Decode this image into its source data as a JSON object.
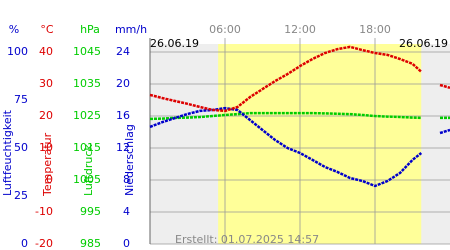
{
  "chart_data": {
    "type": "line",
    "date_left": "26.06.19",
    "date_right": "26.06.19",
    "footer": "Erstellt: 01.07.2025 14:57",
    "grid": true,
    "xlim": [
      0,
      24
    ],
    "xticks": [
      {
        "value": 6,
        "label": "06:00"
      },
      {
        "value": 12,
        "label": "12:00"
      },
      {
        "value": 18,
        "label": "18:00"
      }
    ],
    "daylight": [
      5.45,
      21.7
    ],
    "axes": [
      {
        "unit": "%",
        "label": "Luftfeuchtigkeit",
        "color": "#0000cc",
        "ylim": [
          0,
          100
        ],
        "yticks": [
          0,
          25,
          50,
          75,
          100
        ]
      },
      {
        "unit": "°C",
        "label": "Temperatur",
        "color": "#dd0000",
        "ylim": [
          -20,
          40
        ],
        "yticks": [
          -20,
          -10,
          0,
          10,
          20,
          30,
          40
        ]
      },
      {
        "unit": "hPa",
        "label": "Luftdruck",
        "color": "#00cc00",
        "ylim": [
          985,
          1045
        ],
        "yticks": [
          985,
          995,
          1005,
          1015,
          1025,
          1035,
          1045
        ]
      },
      {
        "unit": "mm/h",
        "label": "Niederschlag",
        "color": "#0000cc",
        "ylim": [
          0,
          24
        ],
        "yticks": [
          0,
          4,
          8,
          12,
          16,
          20,
          24
        ]
      }
    ],
    "x": [
      0,
      1,
      2,
      3,
      4,
      5,
      6,
      7,
      8,
      9,
      10,
      11,
      12,
      13,
      14,
      15,
      16,
      17,
      18,
      19,
      20,
      21,
      21.7,
      22.5,
      23.2,
      24
    ],
    "series": [
      {
        "axis": 2,
        "color": "#00cc00",
        "values": [
          1024.1,
          1024.2,
          1024.4,
          1024.5,
          1024.7,
          1025,
          1025.3,
          1025.6,
          1025.9,
          1025.9,
          1025.9,
          1025.9,
          1025.9,
          1025.9,
          1025.8,
          1025.7,
          1025.6,
          1025.3,
          1025,
          1024.8,
          1024.7,
          1024.5,
          1024.4,
          null,
          1024.4,
          1024.4
        ]
      },
      {
        "axis": 0,
        "color": "#0000cc",
        "values": [
          61,
          63.5,
          65.6,
          67.7,
          69.3,
          69.8,
          70.8,
          69.8,
          64.6,
          59.4,
          54.2,
          50,
          47.4,
          43.8,
          40.1,
          37.5,
          34.4,
          32.8,
          30.2,
          32.8,
          37,
          43.8,
          47.4,
          null,
          57.8,
          59.4
        ]
      },
      {
        "axis": 1,
        "color": "#dd0000",
        "values": [
          26.6,
          25.6,
          24.7,
          23.8,
          22.8,
          21.9,
          21.6,
          22.8,
          25.9,
          28.4,
          30.9,
          33.1,
          35.6,
          37.8,
          39.7,
          40.9,
          41.6,
          40.6,
          39.7,
          39.1,
          37.8,
          36.3,
          33.8,
          null,
          29.7,
          28.8
        ]
      }
    ]
  }
}
